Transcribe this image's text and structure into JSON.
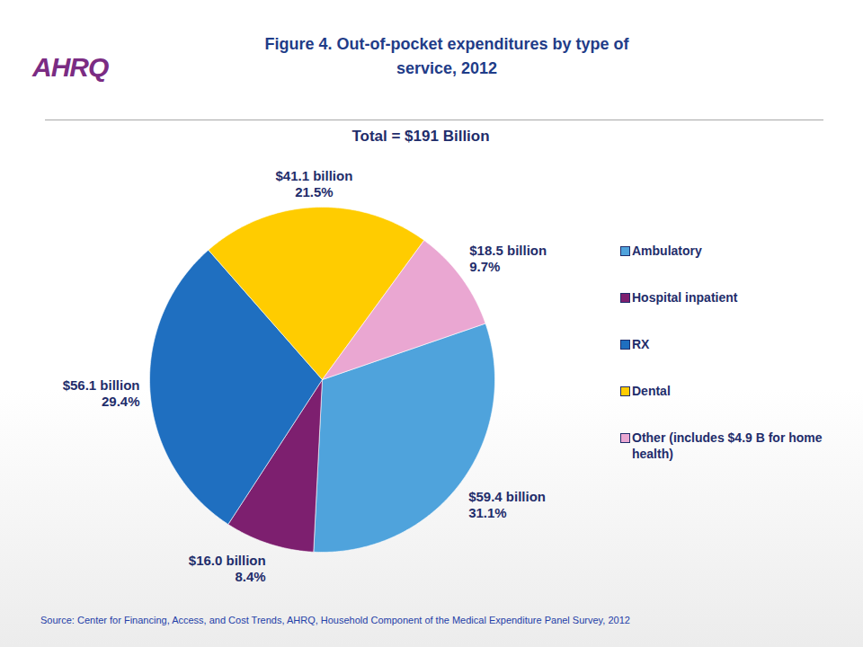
{
  "chart_data": {
    "type": "pie",
    "logo": "AHRQ",
    "title": "Figure 4. Out-of-pocket expenditures by type of service, 2012",
    "subtitle": "Total = $191 Billion",
    "categories": [
      "Ambulatory",
      "Hospital inpatient",
      "RX",
      "Dental",
      "Other (includes $4.9 B for home health)"
    ],
    "values": [
      59.4,
      16.0,
      56.1,
      41.1,
      18.5
    ],
    "value_labels": [
      "$59.4 billion",
      "$16.0 billion",
      "$56.1 billion",
      "$41.1 billion",
      "$18.5 billion"
    ],
    "percent_labels": [
      "31.1%",
      "8.4%",
      "29.4%",
      "21.5%",
      "9.7%"
    ],
    "colors": [
      "#4fa3dc",
      "#7d1f6f",
      "#1f6fc0",
      "#ffcc00",
      "#eaa7d2"
    ],
    "data_labels": true,
    "legend": "right",
    "caption": "Source: Center for Financing, Access, and Cost Trends, AHRQ, Household Component of the Medical Expenditure Panel Survey, 2012"
  }
}
